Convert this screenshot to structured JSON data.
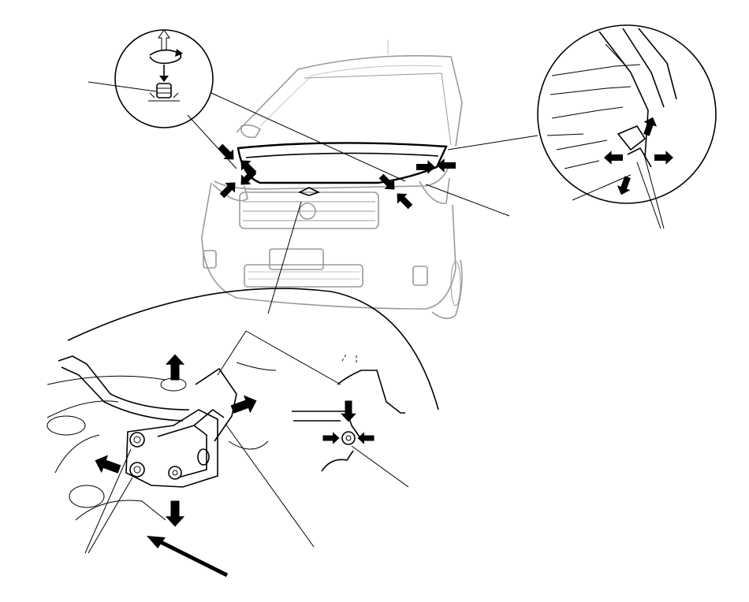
{
  "diagram": {
    "type": "service-manual-illustration",
    "subject": "",
    "callouts": []
  },
  "colors": {
    "line": "#000000",
    "arrow": "#000000",
    "vehicle_outline": "#9a9a9a",
    "background": "#ffffff"
  },
  "icons": [
    "rotate-arrow-icon",
    "up-arrow-icon",
    "down-arrow-icon",
    "push-arrow-icon"
  ]
}
